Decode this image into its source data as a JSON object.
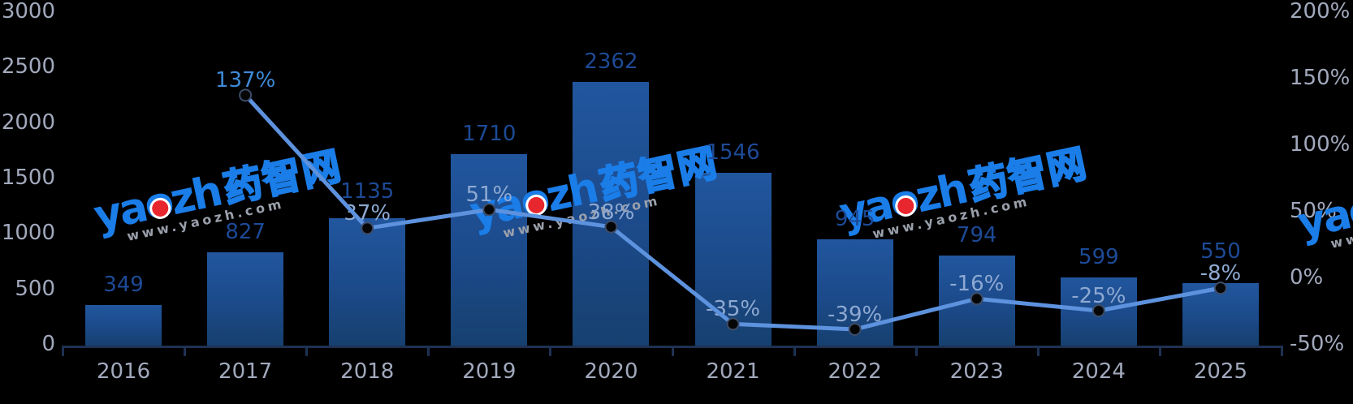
{
  "chart_data": {
    "type": "bar+line",
    "title": "",
    "categories": [
      "2016",
      "2017",
      "2018",
      "2019",
      "2020",
      "2021",
      "2022",
      "2023",
      "2024",
      "2025"
    ],
    "series": [
      {
        "name": "bars",
        "type": "bar",
        "axis": "left",
        "values": [
          349,
          827,
          1135,
          1710,
          2362,
          1546,
          945,
          794,
          599,
          550
        ],
        "labels": [
          "349",
          "827",
          "1135",
          "1710",
          "2362",
          "1546",
          "945",
          "794",
          "599",
          "550"
        ]
      },
      {
        "name": "growth-line",
        "type": "line",
        "axis": "right",
        "values": [
          null,
          137,
          37,
          51,
          38,
          -35,
          -39,
          -16,
          -25,
          -8
        ],
        "labels": [
          null,
          "137%",
          "37%",
          "51%",
          "38%",
          "-35%",
          "-39%",
          "-16%",
          "-25%",
          "-8%"
        ]
      }
    ],
    "left_axis": {
      "min": 0,
      "max": 3000,
      "ticks": [
        {
          "label": "0",
          "value": 0
        },
        {
          "label": "500",
          "value": 500
        },
        {
          "label": "1000",
          "value": 1000
        },
        {
          "label": "1500",
          "value": 1500
        },
        {
          "label": "2000",
          "value": 2000
        },
        {
          "label": "2500",
          "value": 2500
        },
        {
          "label": "3000",
          "value": 3000
        }
      ]
    },
    "right_axis": {
      "min": -50,
      "max": 200,
      "ticks": [
        {
          "label": "-50%",
          "value": -50
        },
        {
          "label": "0%",
          "value": 0
        },
        {
          "label": "50%",
          "value": 50
        },
        {
          "label": "100%",
          "value": 100
        },
        {
          "label": "150%",
          "value": 150
        },
        {
          "label": "200%",
          "value": 200
        }
      ]
    },
    "grid": false,
    "legend": false
  },
  "colors": {
    "background": "#000000",
    "bar_top": "#21569e",
    "bar_mid": "#1c4a8a",
    "bar_bottom": "#16406f",
    "bar_label": "#1d4a96",
    "pct_label": "#8ea9d2",
    "pct_label_first": "#3e8ad8",
    "tick_label": "#a2a9bd",
    "axis_line": "#1d3152",
    "line": "#5d92de",
    "marker_fill": "#060606",
    "marker_stroke": "#3c4c68"
  },
  "watermark": {
    "latin_parts": [
      "ya",
      "o",
      "zh"
    ],
    "cjk": "药智网",
    "url": "www.yaozh.com",
    "logo_color": "#1a7de8",
    "dot_color": "#e8262d",
    "url_color": "#9aa0ab"
  }
}
